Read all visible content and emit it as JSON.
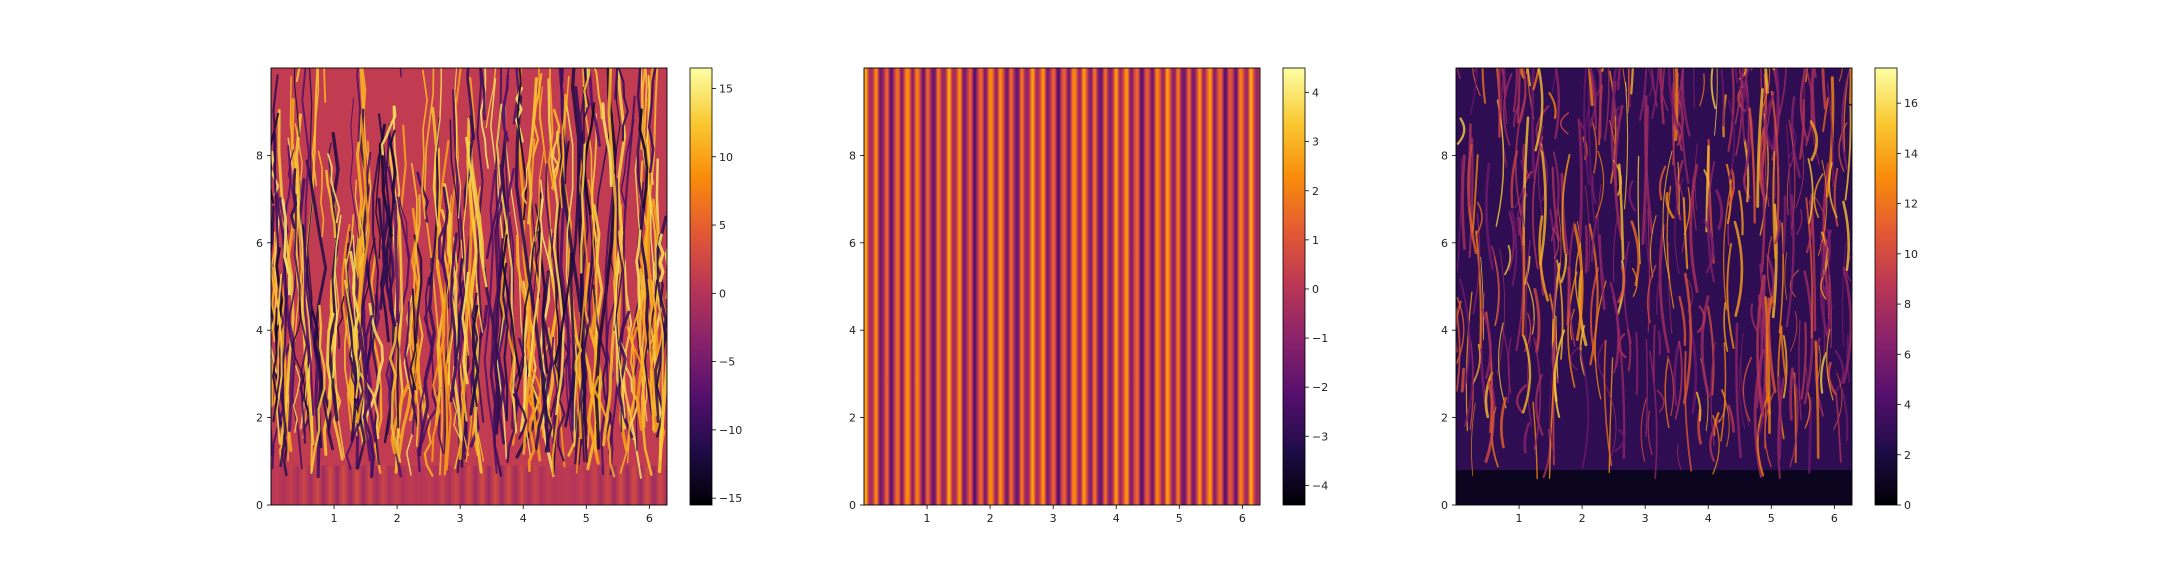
{
  "colormap": "inferno",
  "chart_data": [
    {
      "type": "heatmap",
      "pattern": "merging-streaks",
      "x_range": [
        0,
        6.28
      ],
      "y_range": [
        0,
        10
      ],
      "x_ticks": [
        1,
        2,
        3,
        4,
        5,
        6
      ],
      "y_ticks": [
        0,
        2,
        4,
        6,
        8
      ],
      "colorbar_range": [
        -15.5,
        16.5
      ],
      "colorbar_ticks": [
        -15,
        -10,
        -5,
        0,
        5,
        10,
        15
      ],
      "colorbar_tick_labels": [
        "−15",
        "−10",
        "−5",
        "0",
        "5",
        "10",
        "15"
      ]
    },
    {
      "type": "heatmap",
      "pattern": "vertical-stripes",
      "x_range": [
        0,
        6.28
      ],
      "y_range": [
        0,
        10
      ],
      "x_ticks": [
        1,
        2,
        3,
        4,
        5,
        6
      ],
      "y_ticks": [
        0,
        2,
        4,
        6,
        8
      ],
      "colorbar_range": [
        -4.4,
        4.5
      ],
      "colorbar_ticks": [
        -4,
        -3,
        -2,
        -1,
        0,
        1,
        2,
        3,
        4
      ],
      "colorbar_tick_labels": [
        "−4",
        "−3",
        "−2",
        "−1",
        "0",
        "1",
        "2",
        "3",
        "4"
      ]
    },
    {
      "type": "heatmap",
      "pattern": "filamentary",
      "x_range": [
        0,
        6.28
      ],
      "y_range": [
        0,
        10
      ],
      "x_ticks": [
        1,
        2,
        3,
        4,
        5,
        6
      ],
      "y_ticks": [
        0,
        2,
        4,
        6,
        8
      ],
      "colorbar_range": [
        0,
        17.4
      ],
      "colorbar_ticks": [
        0,
        2,
        4,
        6,
        8,
        10,
        12,
        14,
        16
      ],
      "colorbar_tick_labels": [
        "0",
        "2",
        "4",
        "6",
        "8",
        "10",
        "12",
        "14",
        "16"
      ]
    }
  ]
}
